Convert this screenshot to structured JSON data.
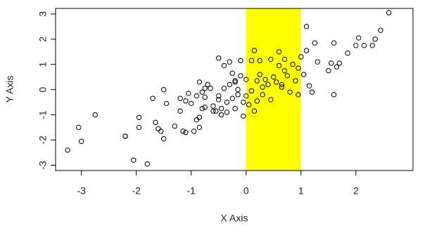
{
  "chart_data": {
    "type": "scatter",
    "x_label": "X Axis",
    "y_label": "Y Axis",
    "x": [
      -3.25,
      -3.05,
      -3.0,
      -2.75,
      -2.2,
      -2.2,
      -2.05,
      -1.95,
      -1.95,
      -1.8,
      -1.7,
      -1.65,
      -1.6,
      -1.55,
      -1.5,
      -1.5,
      -1.45,
      -1.3,
      -1.2,
      -1.2,
      -1.15,
      -1.1,
      -1.1,
      -1.05,
      -1.0,
      -0.95,
      -0.9,
      -0.9,
      -0.85,
      -0.85,
      -0.85,
      -0.8,
      -0.8,
      -0.75,
      -0.75,
      -0.75,
      -0.7,
      -0.65,
      -0.6,
      -0.6,
      -0.55,
      -0.5,
      -0.5,
      -0.5,
      -0.45,
      -0.45,
      -0.4,
      -0.4,
      -0.35,
      -0.35,
      -0.3,
      -0.3,
      -0.25,
      -0.25,
      -0.2,
      -0.2,
      -0.2,
      -0.15,
      -0.15,
      -0.1,
      -0.1,
      -0.05,
      -0.05,
      0.0,
      0.0,
      0.05,
      0.1,
      0.1,
      0.15,
      0.15,
      0.2,
      0.2,
      0.25,
      0.25,
      0.3,
      0.3,
      0.35,
      0.4,
      0.45,
      0.45,
      0.5,
      0.55,
      0.6,
      0.6,
      0.65,
      0.65,
      0.7,
      0.7,
      0.75,
      0.8,
      0.85,
      0.9,
      0.95,
      0.95,
      1.0,
      1.05,
      1.1,
      1.1,
      1.15,
      1.2,
      1.25,
      1.3,
      1.5,
      1.55,
      1.6,
      1.6,
      1.65,
      1.7,
      1.85,
      2.0,
      2.05,
      2.15,
      2.3,
      2.35,
      2.45,
      2.6
    ],
    "values": [
      -2.4,
      -1.5,
      -2.05,
      -1.0,
      -1.85,
      -1.85,
      -2.8,
      -1.5,
      -1.1,
      -2.95,
      -0.35,
      -1.3,
      -1.55,
      -1.65,
      -1.95,
      0.0,
      -0.55,
      -1.45,
      -0.85,
      -0.35,
      -1.65,
      -1.7,
      -0.45,
      -0.15,
      -0.55,
      -1.65,
      -0.25,
      -1.2,
      -1.5,
      -1.1,
      0.3,
      -0.75,
      -0.1,
      -0.3,
      -0.7,
      0.05,
      0.2,
      0.05,
      -0.65,
      -0.85,
      -0.85,
      -0.25,
      -0.4,
      1.25,
      -1.0,
      -0.75,
      0.05,
      0.95,
      -0.9,
      -0.5,
      0.2,
      1.1,
      -0.35,
      0.65,
      -0.75,
      0.3,
      0.35,
      0.0,
      -0.2,
      0.55,
      1.15,
      -0.5,
      -1.05,
      0.4,
      -0.25,
      -0.6,
      -0.05,
      1.15,
      -0.85,
      1.55,
      0.35,
      -0.45,
      0.6,
      1.15,
      -0.2,
      0.1,
      0.4,
      0.2,
      1.2,
      -0.4,
      0.5,
      0.3,
      0.95,
      1.5,
      0.2,
      0.1,
      0.75,
      1.2,
      0.55,
      -0.1,
      1.0,
      0.35,
      -0.2,
      0.85,
      1.3,
      0.6,
      2.5,
      1.55,
      0.15,
      -0.1,
      1.85,
      1.1,
      0.75,
      1.05,
      1.85,
      -0.2,
      0.9,
      1.05,
      1.45,
      1.75,
      2.05,
      1.75,
      1.75,
      2.0,
      2.35,
      3.05
    ],
    "xlim": [
      -3.47,
      3.04
    ],
    "ylim": [
      -3.21,
      3.22
    ],
    "xticks": [
      -3,
      -2,
      -1,
      0,
      1,
      2
    ],
    "yticks": [
      -3,
      -2,
      -1,
      0,
      1,
      2,
      3
    ],
    "highlight": {
      "xmin": 0,
      "xmax": 1,
      "color": "#ffff00"
    },
    "color": "#000000"
  }
}
